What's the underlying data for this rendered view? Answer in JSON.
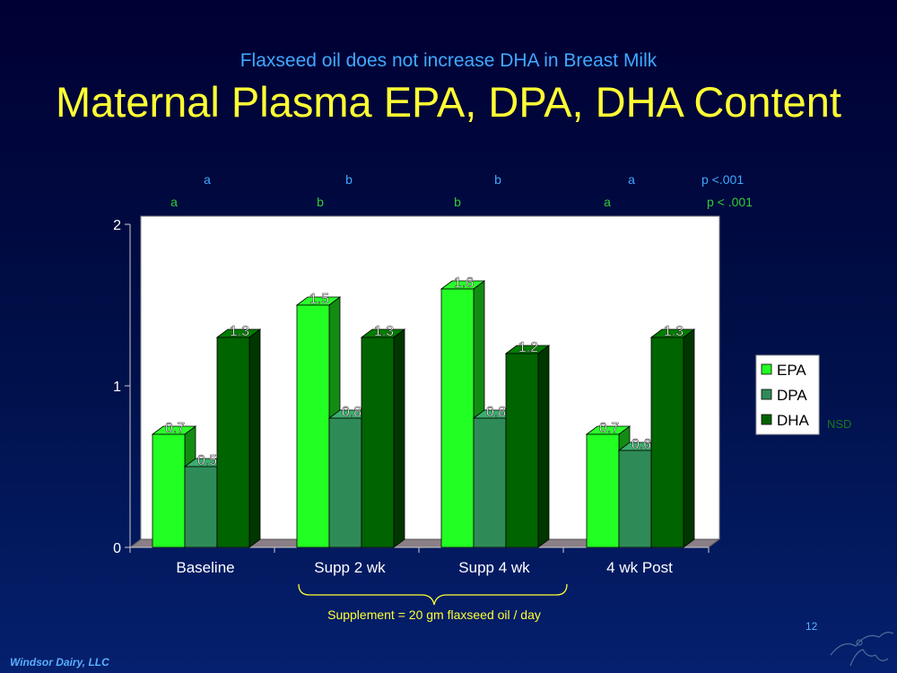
{
  "slide": {
    "subtitle": "Flaxseed oil does not increase DHA in Breast Milk",
    "title": "Maternal Plasma EPA, DPA, DHA Content",
    "footer": "Windsor Dairy, LLC",
    "page_number": "12",
    "bracket_note": "Supplement = 20 gm flaxseed oil / day",
    "nsd_label": "NSD"
  },
  "chart_data": {
    "type": "bar",
    "categories": [
      "Baseline",
      "Supp 2 wk",
      "Supp 4 wk",
      "4 wk Post"
    ],
    "series": [
      {
        "name": "EPA",
        "values": [
          0.7,
          1.5,
          1.6,
          0.7
        ],
        "color": "#22ff22"
      },
      {
        "name": "DPA",
        "values": [
          0.5,
          0.8,
          0.8,
          0.6
        ],
        "color": "#2e8b57"
      },
      {
        "name": "DHA",
        "values": [
          1.3,
          1.3,
          1.2,
          1.3
        ],
        "color": "#006400"
      }
    ],
    "ylim": [
      0,
      2
    ],
    "yticks": [
      "0",
      "1",
      "2"
    ],
    "legend_position": "right",
    "significance": [
      {
        "row": "blue",
        "letters": [
          "a",
          "b",
          "b",
          "a"
        ],
        "p": "p <.001",
        "color": "#3fa9ff"
      },
      {
        "row": "green",
        "letters": [
          "a",
          "b",
          "b",
          "a"
        ],
        "p": "p < .001",
        "color": "#33cc33"
      }
    ]
  }
}
